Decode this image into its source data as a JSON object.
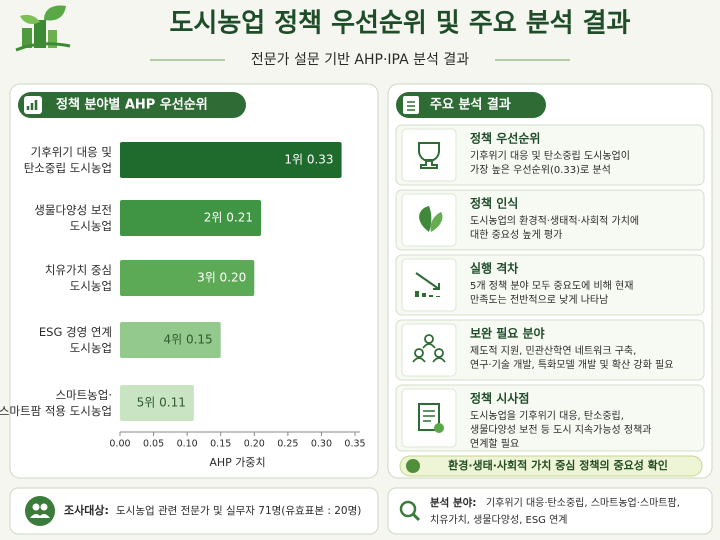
{
  "header": {
    "title": "도시농업 정책 우선순위 및 주요 분석 결과",
    "subtitle": "전문가 설문 기반 AHP·IPA 분석 결과"
  },
  "chart_data": {
    "type": "barh",
    "title": "정책 분야별 AHP 우선순위",
    "categories": [
      "기후위기 대응 및\n탄소중립 도시농업",
      "생물다양성 보전\n도시농업",
      "치유가치 중심\n도시농업",
      "ESG 경영 연계\n도시농업",
      "스마트농업·\n스마트팜 적용 도시농업"
    ],
    "values": [
      0.33,
      0.21,
      0.2,
      0.15,
      0.11
    ],
    "value_labels": [
      "1위  0.33",
      "2위  0.21",
      "3위  0.20",
      "4위  0.15",
      "5위  0.11"
    ],
    "colors": [
      "#1f6b2d",
      "#3f9543",
      "#5caa55",
      "#93c98c",
      "#c9e4c3"
    ],
    "xlabel": "AHP 가중치",
    "xlim": [
      0,
      0.35
    ],
    "xticks": [
      {
        "value": 0,
        "label": "0.00"
      },
      0.05,
      {
        "value": 0.1,
        "label": "0.10"
      },
      0.15,
      {
        "value": 0.2,
        "label": "0.20"
      },
      0.25,
      {
        "value": 0.3,
        "label": "0.30"
      },
      0.35
    ]
  },
  "findings": {
    "title": "주요 분석 결과",
    "items": [
      {
        "title": "정책 우선순위",
        "body": "기후위기 대응 및 탄소중립 도시농업이\n가장 높은 우선순위(0.33)로 분석"
      },
      {
        "title": "정책 인식",
        "body": "도시농업의 환경적·생태적·사회적 가치에\n대한 중요성 높게 평가"
      },
      {
        "title": "실행 격차",
        "body": "5개 정책 분야 모두 중요도에 비해 현재\n만족도는 전반적으로 낮게 나타남"
      },
      {
        "title": "보완 필요 분야",
        "body": "제도적 지원, 민관산학연 네트워크 구축,\n연구·기술 개발, 특화모델 개발 및 확산 강화 필요"
      },
      {
        "title": "정책 시사점",
        "body": "도시농업을 기후위기 대응, 탄소중립,\n생물다양성 보전 등 도시 지속가능성 정책과\n연계할 필요"
      }
    ],
    "conclusion": "환경·생태·사회적 가치 중심 정책의 중요성 확인"
  },
  "footer": {
    "subject": {
      "label": "조사대상:",
      "text": "도시농업 관련 전문가 및 실무자 71명(유효표본 : 20명)"
    },
    "analysis": {
      "label": "분석 분야:",
      "lines": [
        "기후위기 대응·탄소중립, 스마트농업·스마트팜,",
        "치유가치, 생물다양성, ESG 연계"
      ]
    }
  }
}
